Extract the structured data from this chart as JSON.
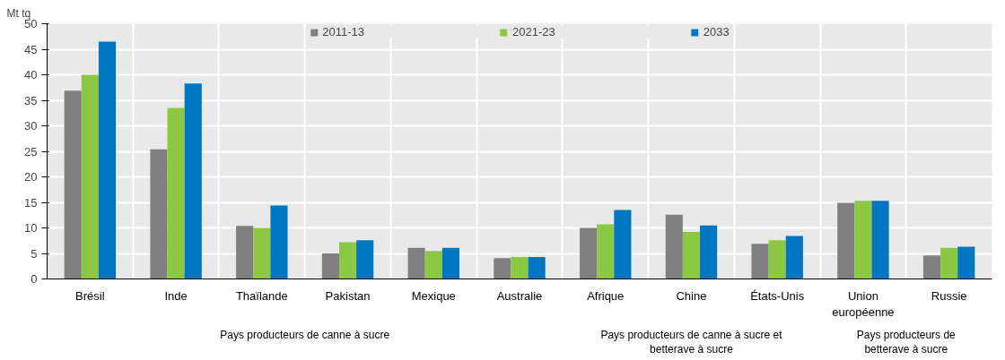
{
  "chart_data": {
    "type": "bar",
    "ylabel": "Mt tq",
    "categories": [
      "Brésil",
      "Inde",
      "Thaïlande",
      "Pakistan",
      "Mexique",
      "Australie",
      "Afrique",
      "Chine",
      "États-Unis",
      "Union européenne",
      "Russie"
    ],
    "series": [
      {
        "name": "2011-13",
        "color": "#808080",
        "values": [
          36.9,
          25.4,
          10.4,
          5.0,
          6.1,
          4.1,
          10.0,
          12.6,
          6.9,
          14.9,
          4.6
        ]
      },
      {
        "name": "2021-23",
        "color": "#8cc841",
        "values": [
          40.0,
          33.5,
          10.0,
          7.2,
          5.5,
          4.3,
          10.7,
          9.2,
          7.6,
          15.3,
          6.1
        ]
      },
      {
        "name": "2033",
        "color": "#0077c0",
        "values": [
          46.5,
          38.3,
          14.4,
          7.6,
          6.1,
          4.3,
          13.5,
          10.5,
          8.4,
          15.3,
          6.3
        ]
      }
    ],
    "annotations": [
      "Pays producteurs de canne à sucre",
      "Pays producteurs de canne à sucre et betterave à sucre",
      "Pays producteurs de betterave à sucre"
    ],
    "ylim": [
      0,
      50
    ],
    "yticks": [
      0,
      5,
      10,
      15,
      20,
      25,
      30,
      35,
      40,
      45,
      50
    ],
    "grid": true,
    "legend": "top"
  }
}
